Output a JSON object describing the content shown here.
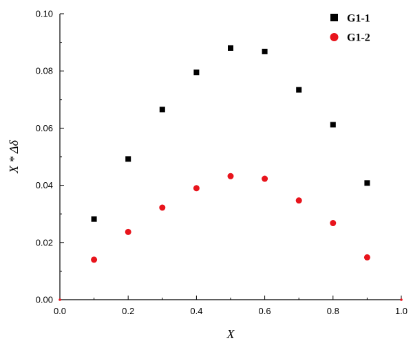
{
  "chart_data": {
    "type": "scatter",
    "xlabel": "X",
    "ylabel": "X * Δδ",
    "xlim": [
      0,
      1.0
    ],
    "ylim": [
      0,
      0.1
    ],
    "x_ticks": [
      "0.0",
      "0.2",
      "0.4",
      "0.6",
      "0.8",
      "1.0"
    ],
    "y_ticks": [
      "0.00",
      "0.02",
      "0.04",
      "0.06",
      "0.08",
      "0.10"
    ],
    "grid": false,
    "legend_position": "top-right",
    "series": [
      {
        "name": "G1-1",
        "marker": "square",
        "color": "#000000",
        "x": [
          0.1,
          0.2,
          0.3,
          0.4,
          0.5,
          0.6,
          0.7,
          0.8,
          0.9
        ],
        "y": [
          0.0282,
          0.0492,
          0.0665,
          0.0795,
          0.088,
          0.0868,
          0.0734,
          0.0612,
          0.0408
        ]
      },
      {
        "name": "G1-2",
        "marker": "circle",
        "color": "#e8141c",
        "x": [
          0.1,
          0.2,
          0.3,
          0.4,
          0.5,
          0.6,
          0.7,
          0.8,
          0.9
        ],
        "y": [
          0.014,
          0.0237,
          0.0322,
          0.039,
          0.0432,
          0.0423,
          0.0347,
          0.0268,
          0.0148
        ]
      }
    ],
    "extra_points": {
      "x": [
        0.0,
        1.0
      ],
      "y": [
        0.0,
        0.0
      ],
      "color": "#e8141c"
    }
  }
}
